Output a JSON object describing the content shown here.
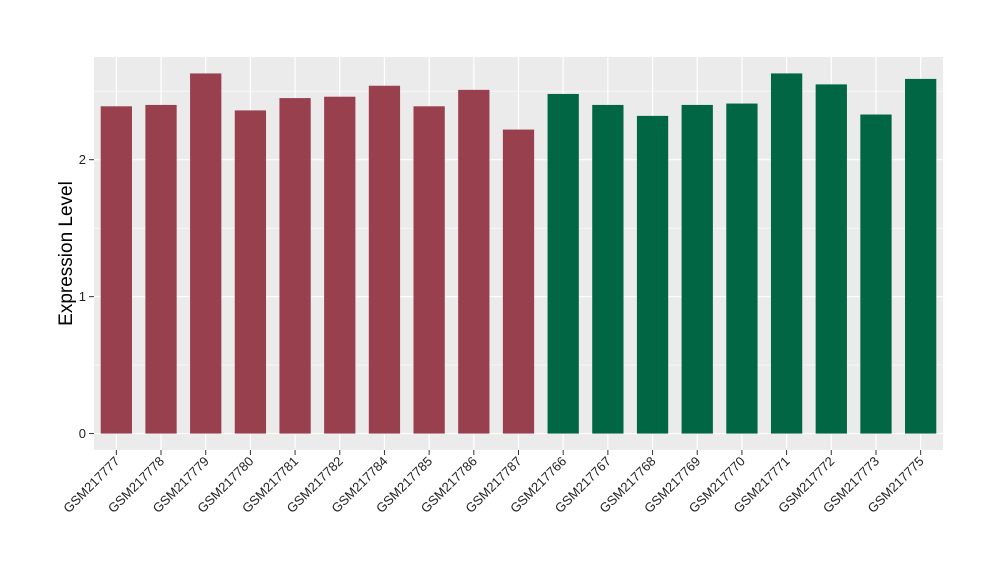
{
  "chart_data": {
    "type": "bar",
    "title": "",
    "xlabel": "",
    "ylabel": "Expression Level",
    "ylim": [
      -0.12,
      2.75
    ],
    "yticks": [
      0,
      1,
      2
    ],
    "grid": true,
    "legend": "none",
    "categories": [
      "GSM217777",
      "GSM217778",
      "GSM217779",
      "GSM217780",
      "GSM217781",
      "GSM217782",
      "GSM217784",
      "GSM217785",
      "GSM217786",
      "GSM217787",
      "GSM217766",
      "GSM217767",
      "GSM217768",
      "GSM217769",
      "GSM217770",
      "GSM217771",
      "GSM217772",
      "GSM217773",
      "GSM217775"
    ],
    "values": [
      2.39,
      2.4,
      2.63,
      2.36,
      2.45,
      2.46,
      2.54,
      2.39,
      2.51,
      2.22,
      2.48,
      2.4,
      2.32,
      2.4,
      2.41,
      2.63,
      2.55,
      2.33,
      2.59
    ],
    "groups": [
      0,
      0,
      0,
      0,
      0,
      0,
      0,
      0,
      0,
      0,
      1,
      1,
      1,
      1,
      1,
      1,
      1,
      1,
      1
    ],
    "colors": {
      "group_0": "#99404f",
      "group_1": "#006644",
      "panel": "#ebebeb",
      "grid": "#ffffff"
    }
  }
}
